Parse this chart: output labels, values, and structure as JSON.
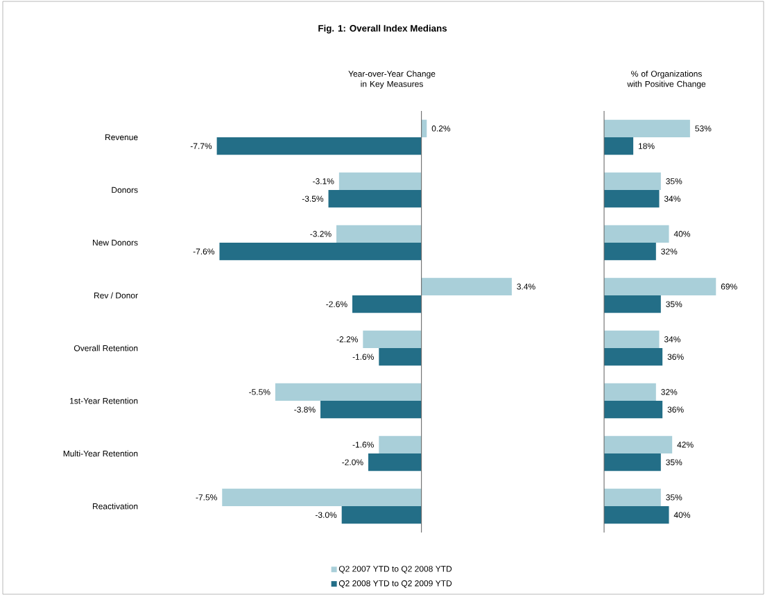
{
  "chart_data": [
    {
      "type": "bar",
      "orientation": "horizontal",
      "title": "Fig. 1: Overall Index Medians",
      "subtitle": "Year-over-Year Change in Key Measures",
      "categories": [
        "Revenue",
        "Donors",
        "New Donors",
        "Rev / Donor",
        "Overall Retention",
        "1st-Year Retention",
        "Multi-Year Retention",
        "Reactivation"
      ],
      "series": [
        {
          "name": "Q2 2007 YTD to Q2 2008 YTD",
          "color": "#a9cfd9",
          "values": [
            0.2,
            -3.1,
            -3.2,
            3.4,
            -2.2,
            -5.5,
            -1.6,
            -7.5
          ],
          "value_labels": [
            "0.2%",
            "-3.1%",
            "-3.2%",
            "3.4%",
            "-2.2%",
            "-5.5%",
            "-1.6%",
            "-7.5%"
          ]
        },
        {
          "name": "Q2 2008 YTD to Q2 2009 YTD",
          "color": "#236e87",
          "values": [
            -7.7,
            -3.5,
            -7.6,
            -2.6,
            -1.6,
            -3.8,
            -2.0,
            -3.0
          ],
          "value_labels": [
            "-7.7%",
            "-3.5%",
            "-7.6%",
            "-2.6%",
            "-1.6%",
            "-3.8%",
            "-2.0%",
            "-3.0%"
          ]
        }
      ],
      "legend": "bottom",
      "tick_labels": "y"
    },
    {
      "type": "bar",
      "orientation": "horizontal",
      "subtitle": "% of Organizations with Positive Change",
      "categories": [
        null,
        null,
        null,
        null,
        null,
        null,
        null,
        null
      ],
      "series": [
        {
          "color": "#a9cfd9",
          "values": [
            53,
            35,
            40,
            69,
            34,
            32,
            42,
            35
          ],
          "value_labels": [
            "53%",
            "35%",
            "40%",
            "69%",
            "34%",
            "32%",
            "42%",
            "35%"
          ]
        },
        {
          "color": "#236e87",
          "values": [
            18,
            34,
            32,
            35,
            36,
            36,
            35,
            40
          ],
          "value_labels": [
            "18%",
            "34%",
            "32%",
            "35%",
            "36%",
            "36%",
            "35%",
            "40%"
          ]
        }
      ],
      "tick_labels": false
    }
  ]
}
